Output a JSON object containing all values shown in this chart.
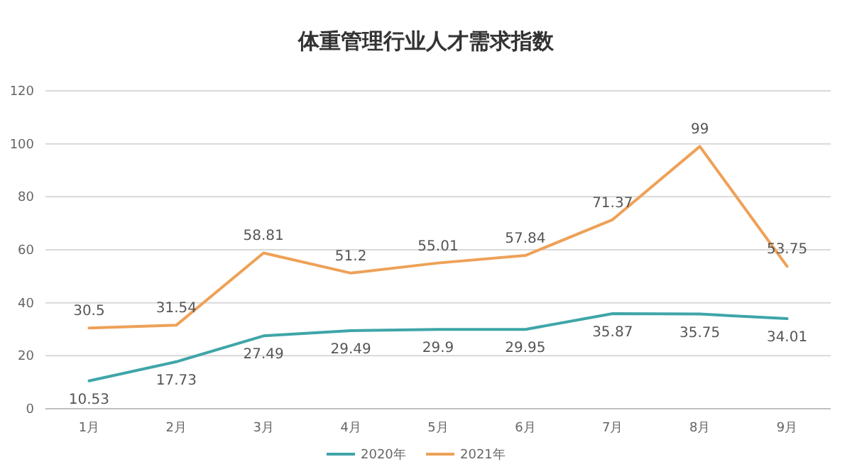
{
  "chart_data": {
    "type": "line",
    "title": "体重管理行业人才需求指数",
    "categories": [
      "1月",
      "2月",
      "3月",
      "4月",
      "5月",
      "6月",
      "7月",
      "8月",
      "9月"
    ],
    "series": [
      {
        "name": "2020年",
        "color": "#3fa5a8",
        "values": [
          10.53,
          17.73,
          27.49,
          29.49,
          29.9,
          29.95,
          35.87,
          35.75,
          34.01
        ]
      },
      {
        "name": "2021年",
        "color": "#eea157",
        "values": [
          30.5,
          31.54,
          58.81,
          51.2,
          55.01,
          57.84,
          71.37,
          99,
          53.75
        ]
      }
    ],
    "ylim": [
      0,
      120
    ],
    "yticks": [
      0,
      20,
      40,
      60,
      80,
      100,
      120
    ],
    "grid": "y",
    "legend": "bottom",
    "data_labels": true
  }
}
